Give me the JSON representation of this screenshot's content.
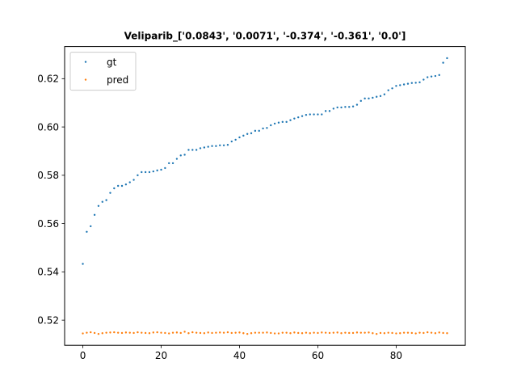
{
  "chart_data": {
    "type": "scatter",
    "title": "Veliparib_['0.0843', '0.0071', '-0.374', '-0.361', '0.0']",
    "xlabel": "",
    "ylabel": "",
    "xlim": [
      -4.65,
      97.65
    ],
    "ylim": [
      0.5096,
      0.6333
    ],
    "xticks": [
      0,
      20,
      40,
      60,
      80
    ],
    "xtick_labels": [
      "0",
      "20",
      "40",
      "60",
      "80"
    ],
    "yticks": [
      0.52,
      0.54,
      0.56,
      0.58,
      0.6,
      0.62
    ],
    "ytick_labels": [
      "0.52",
      "0.54",
      "0.56",
      "0.58",
      "0.60",
      "0.62"
    ],
    "grid": false,
    "legend_position": "top-left",
    "series": [
      {
        "name": "gt",
        "color": "#1f77b4",
        "y": [
          0.5433,
          0.5566,
          0.5589,
          0.5636,
          0.5673,
          0.569,
          0.5697,
          0.5727,
          0.5746,
          0.5756,
          0.5756,
          0.5762,
          0.5771,
          0.5781,
          0.58,
          0.5813,
          0.5813,
          0.5813,
          0.5816,
          0.582,
          0.5823,
          0.583,
          0.585,
          0.585,
          0.5868,
          0.5882,
          0.5885,
          0.5905,
          0.5905,
          0.5905,
          0.5912,
          0.5915,
          0.5918,
          0.5921,
          0.5921,
          0.5924,
          0.5924,
          0.5926,
          0.594,
          0.5947,
          0.5957,
          0.5964,
          0.5971,
          0.5974,
          0.5984,
          0.5984,
          0.5994,
          0.5996,
          0.6007,
          0.6014,
          0.6018,
          0.6021,
          0.6021,
          0.6028,
          0.6035,
          0.604,
          0.6045,
          0.605,
          0.6052,
          0.6052,
          0.6052,
          0.6052,
          0.6066,
          0.6066,
          0.6076,
          0.6081,
          0.6081,
          0.6083,
          0.6083,
          0.6085,
          0.6092,
          0.6108,
          0.6118,
          0.6118,
          0.6121,
          0.6125,
          0.6128,
          0.6135,
          0.6152,
          0.616,
          0.617,
          0.6173,
          0.6176,
          0.6179,
          0.6182,
          0.6183,
          0.6185,
          0.6196,
          0.6206,
          0.6209,
          0.6211,
          0.6215,
          0.6266,
          0.6285
        ]
      },
      {
        "name": "pred",
        "color": "#ff7f0e",
        "y": [
          0.5145,
          0.5148,
          0.515,
          0.5147,
          0.5143,
          0.5146,
          0.5148,
          0.5149,
          0.515,
          0.5148,
          0.5147,
          0.5149,
          0.5148,
          0.5147,
          0.515,
          0.5148,
          0.5147,
          0.5146,
          0.5149,
          0.515,
          0.5148,
          0.5147,
          0.5145,
          0.5148,
          0.5149,
          0.5147,
          0.5152,
          0.5146,
          0.515,
          0.5148,
          0.5147,
          0.5146,
          0.5149,
          0.5147,
          0.5148,
          0.5149,
          0.5148,
          0.515,
          0.5147,
          0.5148,
          0.5149,
          0.5146,
          0.5143,
          0.5146,
          0.5148,
          0.5148,
          0.5148,
          0.5149,
          0.5147,
          0.5145,
          0.5145,
          0.5148,
          0.5148,
          0.5146,
          0.5149,
          0.5147,
          0.5146,
          0.5148,
          0.5146,
          0.5148,
          0.5147,
          0.5149,
          0.5148,
          0.5147,
          0.5148,
          0.5149,
          0.5146,
          0.5148,
          0.5147,
          0.5147,
          0.5149,
          0.5148,
          0.5148,
          0.5149,
          0.5146,
          0.5143,
          0.5147,
          0.5146,
          0.5148,
          0.5147,
          0.5145,
          0.5146,
          0.5148,
          0.5148,
          0.5147,
          0.5145,
          0.5148,
          0.5147,
          0.515,
          0.5148,
          0.5146,
          0.5149,
          0.5147,
          0.5146
        ]
      }
    ]
  }
}
